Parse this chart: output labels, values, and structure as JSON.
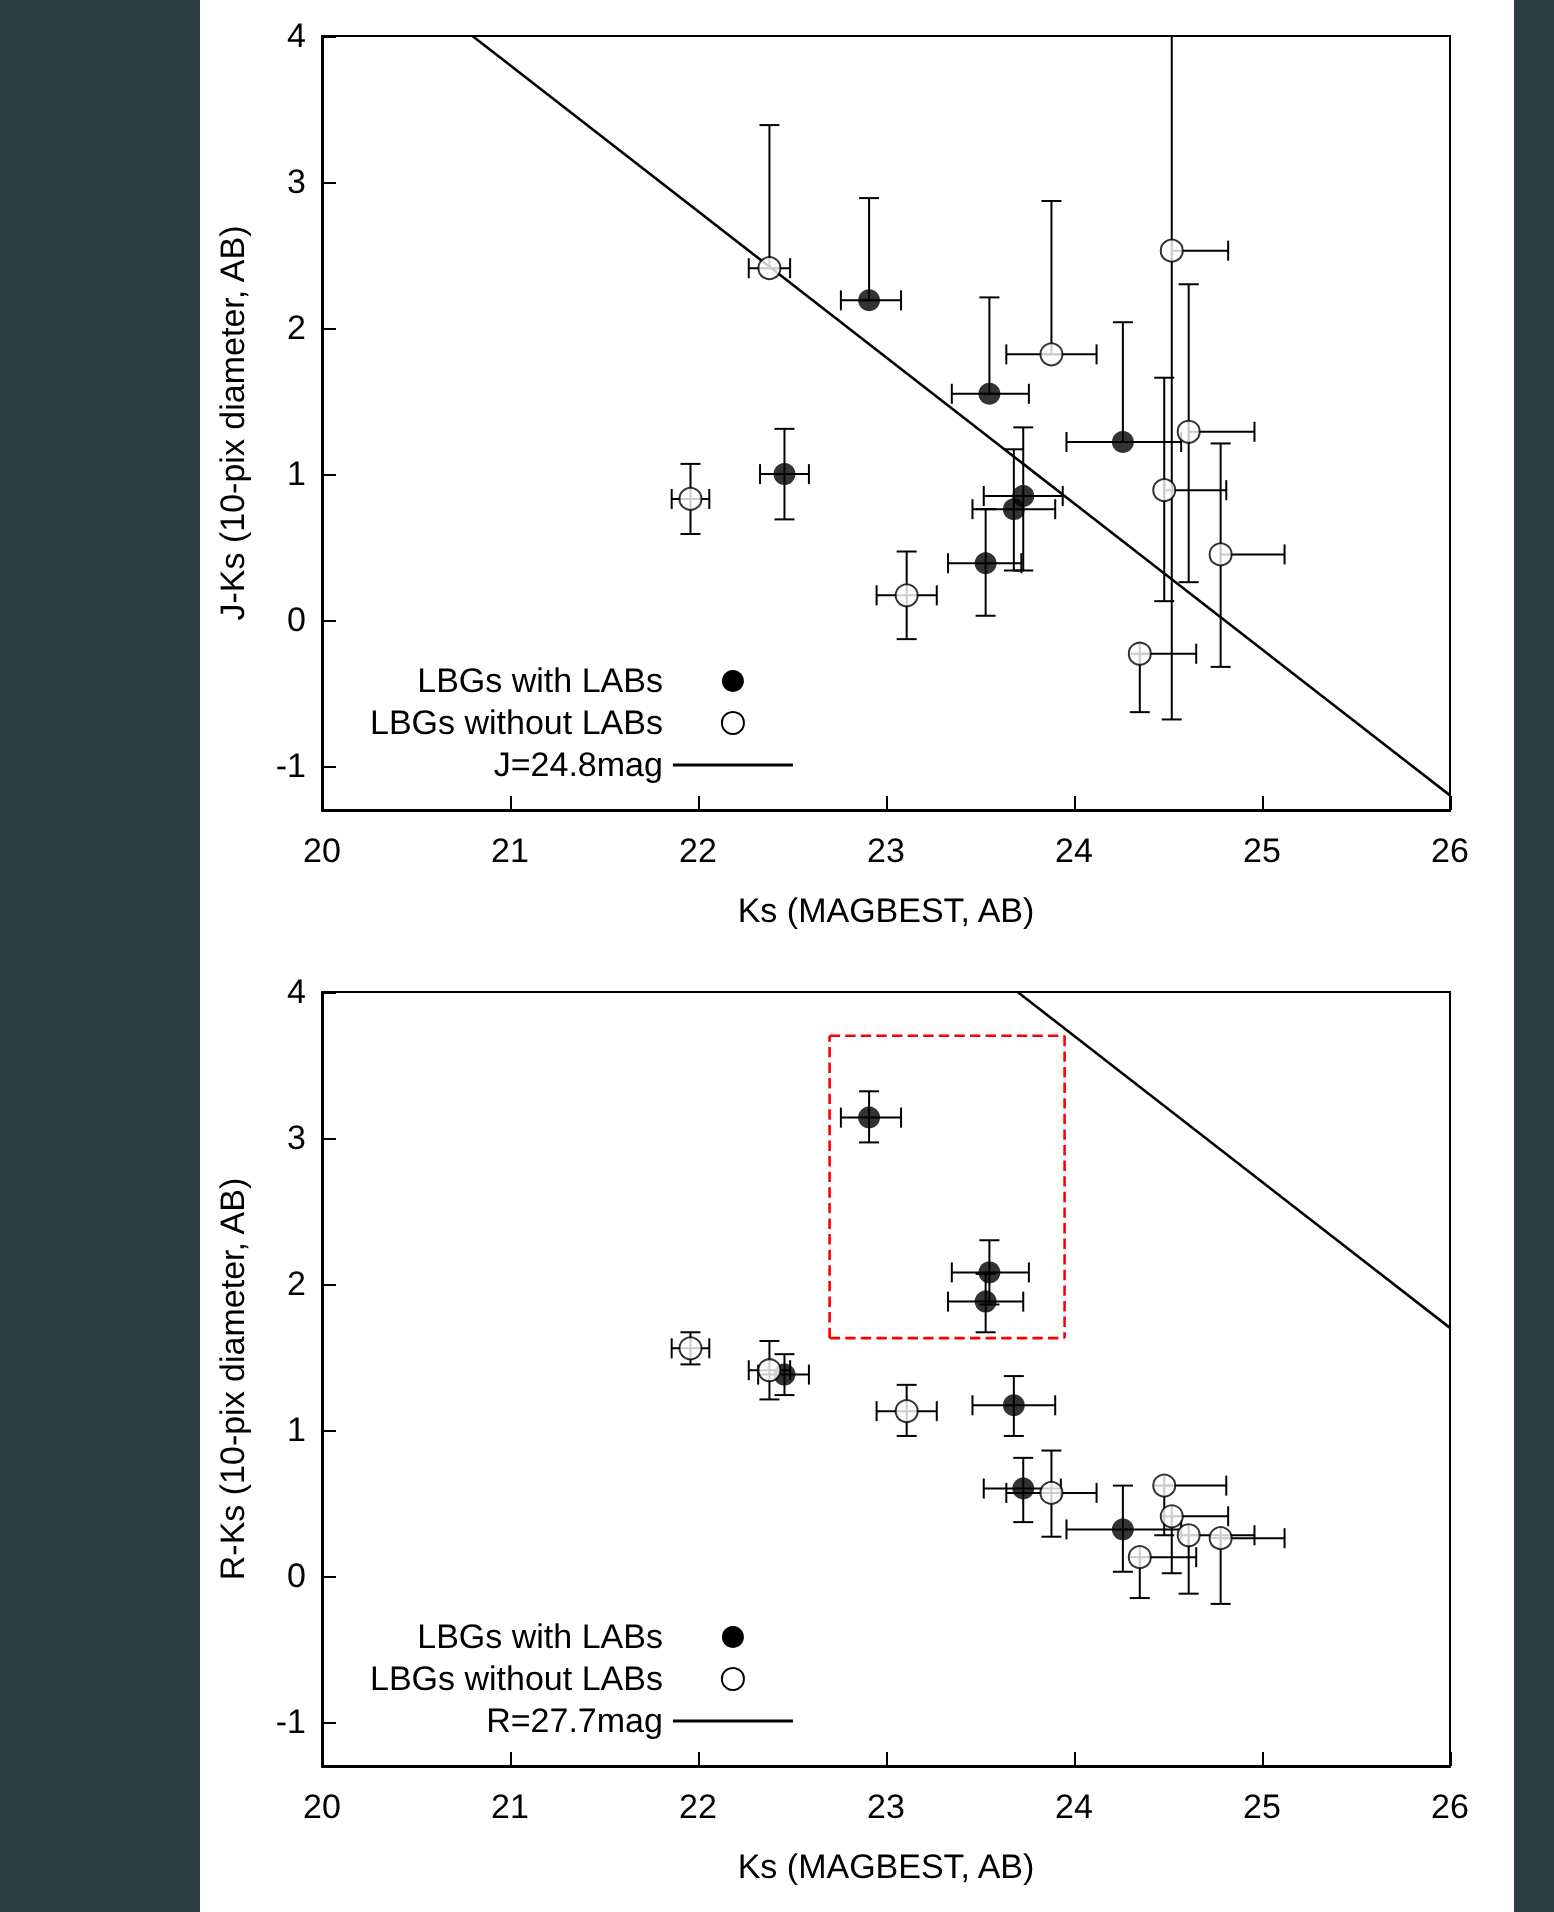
{
  "chart_data": [
    {
      "type": "scatter",
      "xlabel": "Ks (MAGBEST, AB)",
      "ylabel": "J-Ks (10-pix diameter, AB)",
      "xlim": [
        20,
        26
      ],
      "xticks": [
        20,
        21,
        22,
        23,
        24,
        25,
        26
      ],
      "ylim": [
        -1.3,
        4
      ],
      "yticks": [
        -1,
        0,
        1,
        2,
        3,
        4
      ],
      "legend": "bottom left",
      "grid": false,
      "series": [
        {
          "name": "LBGs with LABs",
          "color": "#000000",
          "marker": "circle",
          "x": [
            22.91,
            23.55,
            24.26,
            22.46,
            23.73,
            23.68,
            23.53
          ],
          "values": [
            2.19,
            1.55,
            1.22,
            1.0,
            0.85,
            0.76,
            0.39
          ],
          "errors": [
            [
              2.19,
              2.89
            ],
            [
              1.55,
              2.21
            ],
            [
              1.22,
              2.04
            ],
            [
              0.69,
              1.31
            ],
            [
              0.34,
              1.32
            ],
            [
              0.34,
              1.17
            ],
            [
              0.03,
              0.76
            ]
          ],
          "xerrors": [
            [
              22.76,
              23.08
            ],
            [
              23.35,
              23.76
            ],
            [
              23.96,
              24.57
            ],
            [
              22.33,
              22.59
            ],
            [
              23.52,
              23.94
            ],
            [
              23.46,
              23.9
            ],
            [
              23.33,
              23.72
            ]
          ]
        },
        {
          "name": "LBGs without LABs",
          "color": "#000000",
          "marker": "circle-open",
          "x": [
            22.38,
            23.88,
            21.96,
            23.11,
            24.52,
            24.61,
            24.48,
            24.78,
            24.35
          ],
          "values": [
            2.41,
            1.82,
            0.83,
            0.17,
            2.53,
            1.29,
            0.89,
            0.45,
            -0.23
          ],
          "errors": [
            [
              2.41,
              3.39
            ],
            [
              1.82,
              2.87
            ],
            [
              0.59,
              1.07
            ],
            [
              -0.13,
              0.47
            ],
            [
              -0.68,
              4
            ],
            [
              0.26,
              2.3
            ],
            [
              0.13,
              1.66
            ],
            [
              -0.32,
              1.21
            ],
            [
              -0.63,
              -0.23
            ]
          ],
          "xerrors": [
            [
              22.27,
              22.49
            ],
            [
              23.64,
              24.12
            ],
            [
              21.86,
              22.06
            ],
            [
              22.95,
              23.27
            ],
            [
              24.52,
              24.82
            ],
            [
              24.61,
              24.96
            ],
            [
              24.48,
              24.81
            ],
            [
              24.78,
              25.12
            ],
            [
              24.35,
              24.65
            ]
          ]
        },
        {
          "name": "J=24.8mag",
          "type": "line",
          "color": "#000000",
          "line_style": "solid",
          "x": [
            20.8,
            26
          ],
          "values": [
            4,
            -1.2
          ]
        }
      ]
    },
    {
      "type": "scatter",
      "xlabel": "Ks (MAGBEST, AB)",
      "ylabel": "R-Ks (10-pix diameter, AB)",
      "xlim": [
        20,
        26
      ],
      "xticks": [
        20,
        21,
        22,
        23,
        24,
        25,
        26
      ],
      "ylim": [
        -1.3,
        4
      ],
      "yticks": [
        -1,
        0,
        1,
        2,
        3,
        4
      ],
      "legend": "bottom left",
      "grid": false,
      "series": [
        {
          "name": "LBGs with LABs",
          "color": "#000000",
          "marker": "circle",
          "x": [
            22.91,
            23.55,
            23.53,
            22.46,
            23.68,
            23.73,
            24.26
          ],
          "values": [
            3.14,
            2.08,
            1.88,
            1.38,
            1.17,
            0.6,
            0.32
          ],
          "errors": [
            [
              2.97,
              3.32
            ],
            [
              1.86,
              2.3
            ],
            [
              1.67,
              2.07
            ],
            [
              1.24,
              1.52
            ],
            [
              0.96,
              1.37
            ],
            [
              0.37,
              0.81
            ],
            [
              0.03,
              0.62
            ]
          ],
          "xerrors": [
            [
              22.76,
              23.08
            ],
            [
              23.35,
              23.76
            ],
            [
              23.33,
              23.73
            ],
            [
              22.32,
              22.59
            ],
            [
              23.46,
              23.9
            ],
            [
              23.52,
              23.93
            ],
            [
              23.96,
              24.57
            ]
          ]
        },
        {
          "name": "LBGs without LABs",
          "color": "#000000",
          "marker": "circle-open",
          "x": [
            21.96,
            22.38,
            23.11,
            23.88,
            24.48,
            24.52,
            24.61,
            24.78,
            24.35
          ],
          "values": [
            1.56,
            1.41,
            1.13,
            0.57,
            0.62,
            0.41,
            0.28,
            0.26,
            0.13
          ],
          "errors": [
            [
              1.45,
              1.67
            ],
            [
              1.21,
              1.61
            ],
            [
              0.96,
              1.31
            ],
            [
              0.27,
              0.86
            ],
            [
              0.28,
              0.62
            ],
            [
              0.02,
              0.41
            ],
            [
              -0.12,
              0.28
            ],
            [
              -0.19,
              0.26
            ],
            [
              -0.15,
              0.13
            ]
          ],
          "xerrors": [
            [
              21.86,
              22.06
            ],
            [
              22.27,
              22.49
            ],
            [
              22.95,
              23.27
            ],
            [
              23.64,
              24.12
            ],
            [
              24.48,
              24.81
            ],
            [
              24.52,
              24.82
            ],
            [
              24.61,
              24.96
            ],
            [
              24.78,
              25.12
            ],
            [
              24.35,
              24.65
            ]
          ]
        },
        {
          "name": "R=27.7mag",
          "type": "line",
          "color": "#000000",
          "line_style": "solid",
          "x": [
            23.7,
            26
          ],
          "values": [
            4,
            1.7
          ]
        },
        {
          "type": "line",
          "color": "#ff0000",
          "line_style": "dashed",
          "x": [
            22.7,
            23.95
          ],
          "values": [
            3.7,
            3.7
          ]
        },
        {
          "type": "line",
          "color": "#ff0000",
          "line_style": "dashed",
          "x": [
            23.95,
            23.95
          ],
          "values": [
            3.7,
            1.63
          ]
        },
        {
          "type": "line",
          "color": "#ff0000",
          "line_style": "dashed",
          "x": [
            22.7,
            23.95
          ],
          "values": [
            1.63,
            1.63
          ]
        },
        {
          "type": "line",
          "color": "#ff0000",
          "line_style": "dashed",
          "x": [
            22.7,
            22.7
          ],
          "values": [
            1.63,
            3.7
          ]
        }
      ]
    }
  ]
}
